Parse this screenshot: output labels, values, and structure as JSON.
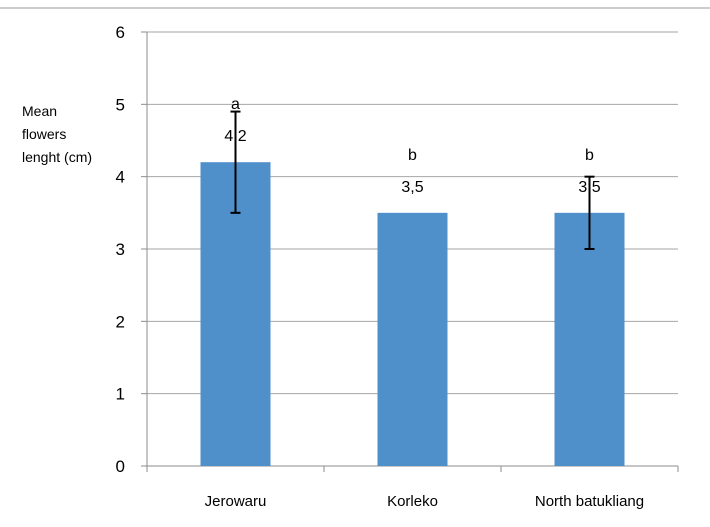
{
  "chart_data": {
    "type": "bar",
    "categories": [
      "Jerowaru",
      "Korleko",
      "North batukliang"
    ],
    "values": [
      4.2,
      3.5,
      3.5
    ],
    "data_labels": [
      "4,2",
      "3,5",
      "3,5"
    ],
    "significance_letters": [
      "a",
      "b",
      "b"
    ],
    "error_bars": [
      {
        "low": 3.5,
        "high": 4.9
      },
      null,
      {
        "low": 3.0,
        "high": 4.0
      }
    ],
    "ylabel_lines": [
      "Mean",
      "flowers",
      "lenght (cm)"
    ],
    "xlabel": "",
    "title": "",
    "ylim": [
      0,
      6
    ],
    "yticks": [
      0,
      1,
      2,
      3,
      4,
      5,
      6
    ],
    "grid": true,
    "bar_color": "#4f8fca",
    "gridline_color": "#a6a6a6"
  }
}
